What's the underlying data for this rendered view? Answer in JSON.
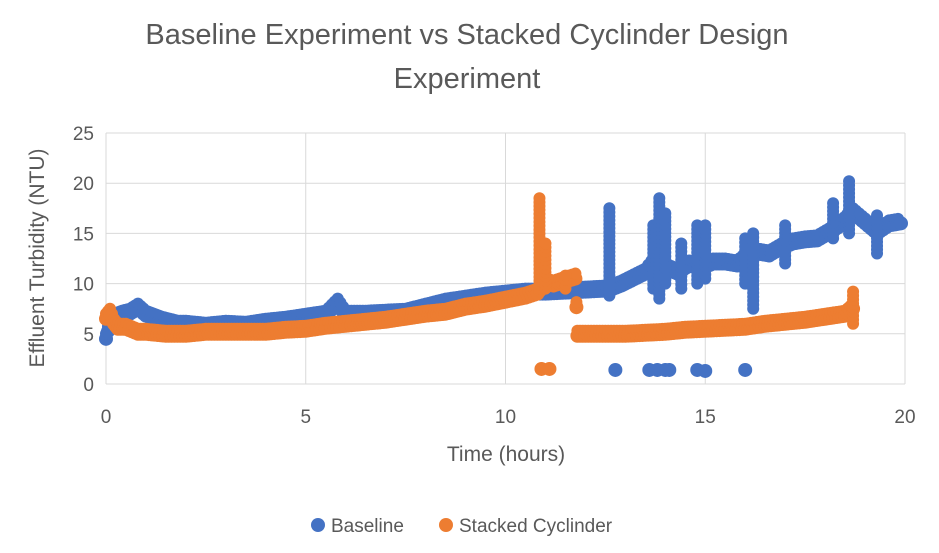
{
  "chart_data": {
    "type": "scatter",
    "title": "Baseline Experiment vs Stacked Cyclinder Design Experiment",
    "title_lines": [
      "Baseline Experiment vs Stacked Cyclinder Design",
      "Experiment"
    ],
    "xlabel": "Time (hours)",
    "ylabel": "Effluent Turbidity (NTU)",
    "xlim": [
      0,
      20
    ],
    "ylim": [
      0,
      25
    ],
    "x_ticks": [
      0,
      5,
      10,
      15,
      20
    ],
    "y_ticks": [
      0,
      5,
      10,
      15,
      20,
      25
    ],
    "grid": true,
    "legend_position": "bottom",
    "series": [
      {
        "name": "Baseline",
        "color": "#4472C4",
        "x": [
          0.0,
          0.1,
          0.2,
          0.4,
          0.6,
          0.8,
          1.0,
          1.2,
          1.4,
          1.6,
          1.8,
          2.0,
          2.5,
          3.0,
          3.5,
          4.0,
          4.5,
          5.0,
          5.5,
          5.8,
          6.0,
          6.5,
          7.0,
          7.5,
          8.0,
          8.5,
          9.0,
          9.5,
          10.0,
          10.5,
          11.0,
          11.5,
          12.0,
          12.5,
          12.7,
          12.9,
          13.0,
          13.5,
          13.8,
          14.0,
          14.3,
          14.6,
          14.9,
          15.2,
          15.5,
          15.8,
          16.0,
          16.3,
          16.6,
          16.9,
          17.2,
          17.5,
          17.8,
          18.1,
          18.4,
          18.7,
          19.0,
          19.3,
          19.6,
          19.9
        ],
        "values": [
          4.5,
          6.0,
          6.5,
          6.8,
          7.0,
          7.5,
          6.8,
          6.5,
          6.2,
          6.0,
          5.8,
          5.8,
          5.6,
          5.8,
          5.7,
          6.0,
          6.2,
          6.5,
          6.8,
          8.0,
          6.8,
          6.8,
          6.9,
          7.0,
          7.5,
          8.0,
          8.3,
          8.6,
          8.8,
          9.0,
          9.0,
          9.1,
          9.2,
          9.3,
          9.5,
          9.8,
          10.0,
          11.0,
          12.5,
          11.5,
          11.0,
          11.8,
          11.5,
          12.0,
          12.0,
          11.8,
          12.5,
          13.0,
          12.8,
          13.5,
          14.0,
          14.2,
          14.3,
          15.0,
          15.8,
          17.0,
          16.0,
          15.0,
          15.8,
          16.0
        ],
        "spikes": [
          {
            "x": 12.6,
            "low": 8.8,
            "high": 17.5
          },
          {
            "x": 13.7,
            "low": 9.5,
            "high": 15.8
          },
          {
            "x": 13.85,
            "low": 8.5,
            "high": 18.5
          },
          {
            "x": 14.0,
            "low": 10.0,
            "high": 17.0
          },
          {
            "x": 14.4,
            "low": 9.5,
            "high": 14.0
          },
          {
            "x": 14.8,
            "low": 10.0,
            "high": 15.8
          },
          {
            "x": 15.0,
            "low": 10.5,
            "high": 15.8
          },
          {
            "x": 16.0,
            "low": 10.0,
            "high": 14.5
          },
          {
            "x": 16.2,
            "low": 7.5,
            "high": 15.0
          },
          {
            "x": 17.0,
            "low": 12.0,
            "high": 15.8
          },
          {
            "x": 18.2,
            "low": 14.5,
            "high": 18.0
          },
          {
            "x": 18.6,
            "low": 15.0,
            "high": 20.2
          },
          {
            "x": 19.3,
            "low": 13.0,
            "high": 16.8
          }
        ],
        "outliers_x": [
          12.75,
          13.6,
          13.8,
          14.0,
          14.1,
          14.8,
          15.0,
          16.0
        ],
        "outliers_y": [
          1.4,
          1.4,
          1.4,
          1.4,
          1.4,
          1.4,
          1.3,
          1.4
        ]
      },
      {
        "name": "Stacked Cyclinder",
        "color": "#ED7D31",
        "x": [
          0.0,
          0.1,
          0.2,
          0.3,
          0.5,
          0.8,
          1.0,
          1.5,
          2.0,
          2.5,
          3.0,
          3.5,
          4.0,
          4.5,
          5.0,
          5.5,
          6.0,
          6.5,
          7.0,
          7.5,
          8.0,
          8.5,
          9.0,
          9.5,
          10.0,
          10.5,
          10.8,
          11.0,
          11.2,
          11.5,
          11.75,
          11.8,
          12.0,
          12.5,
          13.0,
          13.5,
          14.0,
          14.5,
          15.0,
          15.5,
          16.0,
          16.5,
          17.0,
          17.5,
          18.0,
          18.5,
          18.7
        ],
        "values": [
          6.5,
          7.0,
          6.0,
          5.5,
          5.5,
          5.0,
          5.0,
          4.8,
          4.8,
          5.0,
          5.0,
          5.0,
          5.0,
          5.2,
          5.3,
          5.6,
          5.8,
          6.0,
          6.2,
          6.5,
          6.8,
          7.0,
          7.5,
          7.8,
          8.2,
          8.6,
          9.0,
          10.0,
          9.8,
          10.2,
          10.5,
          4.8,
          4.8,
          4.8,
          4.8,
          4.9,
          5.0,
          5.2,
          5.3,
          5.4,
          5.5,
          5.8,
          6.0,
          6.2,
          6.5,
          6.8,
          7.5
        ],
        "spikes": [
          {
            "x": 10.85,
            "low": 9.5,
            "high": 18.5
          },
          {
            "x": 11.0,
            "low": 9.5,
            "high": 14.0
          },
          {
            "x": 11.5,
            "low": 9.5,
            "high": 10.8
          },
          {
            "x": 18.7,
            "low": 6.0,
            "high": 9.2
          }
        ],
        "outliers_x": [
          10.9,
          11.1
        ],
        "outliers_y": [
          1.5,
          1.5
        ]
      }
    ]
  }
}
